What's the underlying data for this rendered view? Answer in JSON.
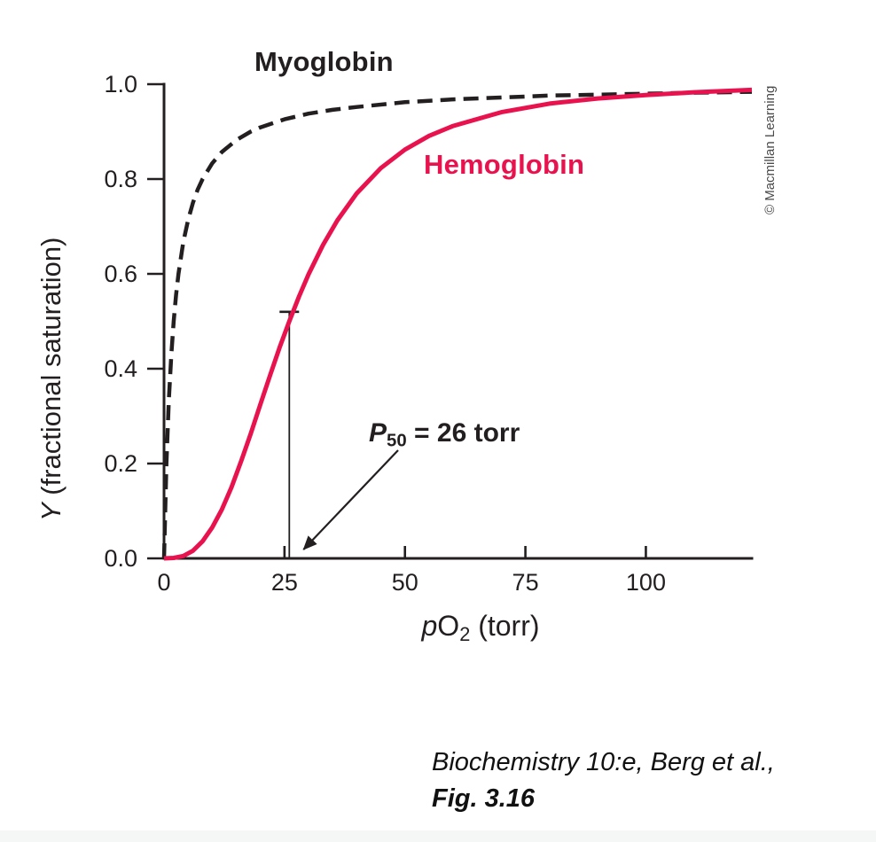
{
  "figure": {
    "myoglobin_label": "Myoglobin",
    "hemoglobin_label": "Hemoglobin",
    "credit": "© Macmillan Learning",
    "caption_line1": "Biochemistry 10:e, Berg et al.,",
    "caption_line2": "Fig. 3.16"
  },
  "chart_data": {
    "type": "line",
    "title": "",
    "xlabel_parts": {
      "p": "p",
      "o": "O",
      "sub": "2",
      "rest": " (torr)"
    },
    "ylabel_parts": {
      "y": "Y",
      "rest": " (fractional saturation)"
    },
    "xlim": [
      0,
      122
    ],
    "ylim": [
      0,
      1.0
    ],
    "x_ticks": [
      0,
      25,
      50,
      75,
      100
    ],
    "x_tick_labels": [
      "0",
      "25",
      "50",
      "75",
      "100"
    ],
    "y_ticks": [
      0,
      0.2,
      0.4,
      0.6,
      0.8,
      1.0
    ],
    "y_tick_labels": [
      "0.0",
      "0.2",
      "0.4",
      "0.6",
      "0.8",
      "1.0"
    ],
    "grid": false,
    "legend_position": "inline-labels",
    "series": [
      {
        "name": "Myoglobin",
        "color": "#231f20",
        "style": "dashed",
        "points": [
          [
            0,
            0
          ],
          [
            0.5,
            0.2
          ],
          [
            1,
            0.333
          ],
          [
            1.5,
            0.429
          ],
          [
            2,
            0.5
          ],
          [
            2.5,
            0.556
          ],
          [
            3,
            0.6
          ],
          [
            4,
            0.667
          ],
          [
            5,
            0.714
          ],
          [
            6,
            0.75
          ],
          [
            7,
            0.778
          ],
          [
            8,
            0.8
          ],
          [
            10,
            0.833
          ],
          [
            12,
            0.857
          ],
          [
            15,
            0.882
          ],
          [
            18,
            0.9
          ],
          [
            20,
            0.909
          ],
          [
            25,
            0.926
          ],
          [
            30,
            0.938
          ],
          [
            35,
            0.946
          ],
          [
            40,
            0.952
          ],
          [
            50,
            0.962
          ],
          [
            60,
            0.968
          ],
          [
            70,
            0.972
          ],
          [
            80,
            0.976
          ],
          [
            90,
            0.978
          ],
          [
            100,
            0.98
          ],
          [
            110,
            0.982
          ],
          [
            122,
            0.984
          ]
        ]
      },
      {
        "name": "Hemoglobin",
        "color": "#e8134e",
        "style": "solid",
        "points": [
          [
            0,
            0
          ],
          [
            2,
            0.001
          ],
          [
            4,
            0.005
          ],
          [
            6,
            0.016
          ],
          [
            8,
            0.036
          ],
          [
            10,
            0.065
          ],
          [
            12,
            0.103
          ],
          [
            14,
            0.15
          ],
          [
            16,
            0.205
          ],
          [
            18,
            0.263
          ],
          [
            20,
            0.325
          ],
          [
            22,
            0.386
          ],
          [
            24,
            0.445
          ],
          [
            26,
            0.5
          ],
          [
            28,
            0.552
          ],
          [
            30,
            0.599
          ],
          [
            33,
            0.661
          ],
          [
            36,
            0.713
          ],
          [
            40,
            0.77
          ],
          [
            45,
            0.823
          ],
          [
            50,
            0.862
          ],
          [
            55,
            0.891
          ],
          [
            60,
            0.912
          ],
          [
            70,
            0.941
          ],
          [
            80,
            0.959
          ],
          [
            90,
            0.97
          ],
          [
            100,
            0.977
          ],
          [
            110,
            0.983
          ],
          [
            122,
            0.988
          ]
        ]
      }
    ],
    "annotation_p50": {
      "p": "P",
      "sub": "50",
      "rest": " = 26 torr",
      "x": 26,
      "y_top": 0.52
    }
  }
}
